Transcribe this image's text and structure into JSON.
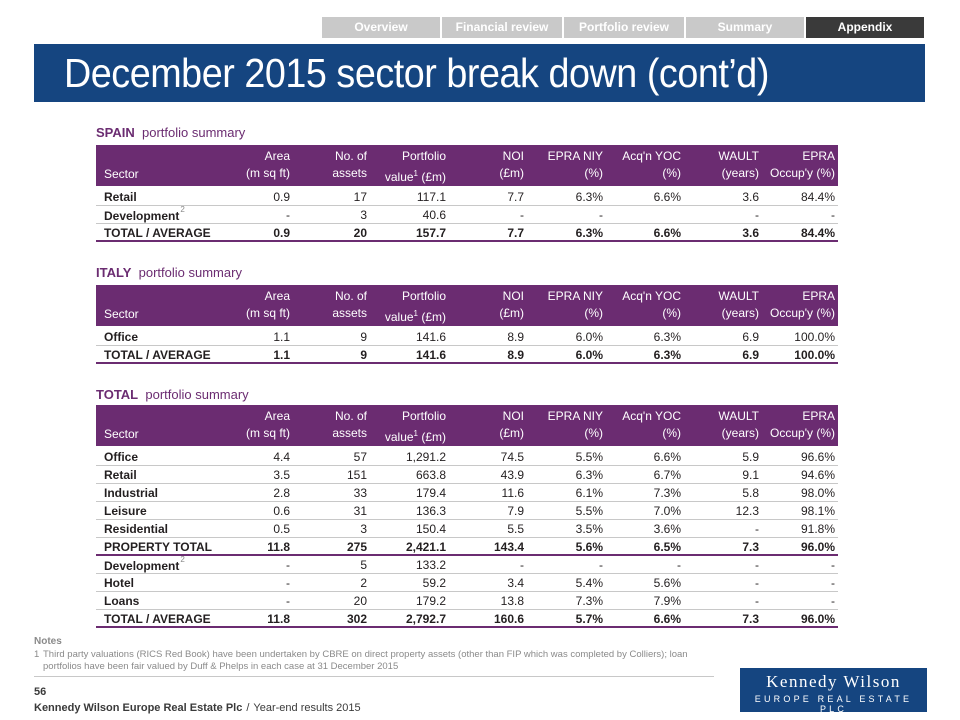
{
  "nav": {
    "tabs": [
      {
        "label": "Overview",
        "active": false
      },
      {
        "label": "Financial review",
        "active": false
      },
      {
        "label": "Portfolio review",
        "active": false
      },
      {
        "label": "Summary",
        "active": false
      },
      {
        "label": "Appendix",
        "active": true
      }
    ]
  },
  "title": "December 2015 sector break down (cont’d)",
  "headers": {
    "sector": "Sector",
    "area_1": "Area",
    "area_2": "(m sq ft)",
    "assets_1": "No. of",
    "assets_2": "assets",
    "value_1": "Portfolio",
    "value_2a": "value",
    "value_sup": "1",
    "value_2b": " (£m)",
    "noi_1": "NOI",
    "noi_2": "(£m)",
    "niy_1": "EPRA NIY",
    "niy_2": "(%)",
    "yoc_1": "Acq'n YOC",
    "yoc_2": "(%)",
    "wault_1": "WAULT",
    "wault_2": "(years)",
    "occ_1": "EPRA",
    "occ_2": "Occup'y (%)"
  },
  "spain": {
    "title_bold": "SPAIN",
    "title_rest": "portfolio summary",
    "rows": [
      {
        "sector": "Retail",
        "fn": "",
        "area": "0.9",
        "assets": "17",
        "value": "117.1",
        "noi": "7.7",
        "niy": "6.3%",
        "yoc": "6.6%",
        "wault": "3.6",
        "occ": "84.4%"
      },
      {
        "sector": "Development",
        "fn": "2",
        "area": "-",
        "assets": "3",
        "value": "40.6",
        "noi": "-",
        "niy": "-",
        "yoc": "",
        "wault": "-",
        "occ": "-"
      },
      {
        "sector": "TOTAL / AVERAGE",
        "fn": "",
        "area": "0.9",
        "assets": "20",
        "value": "157.7",
        "noi": "7.7",
        "niy": "6.3%",
        "yoc": "6.6%",
        "wault": "3.6",
        "occ": "84.4%"
      }
    ]
  },
  "italy": {
    "title_bold": "ITALY",
    "title_rest": "portfolio summary",
    "rows": [
      {
        "sector": "Office",
        "fn": "",
        "area": "1.1",
        "assets": "9",
        "value": "141.6",
        "noi": "8.9",
        "niy": "6.0%",
        "yoc": "6.3%",
        "wault": "6.9",
        "occ": "100.0%"
      },
      {
        "sector": "TOTAL / AVERAGE",
        "fn": "",
        "area": "1.1",
        "assets": "9",
        "value": "141.6",
        "noi": "8.9",
        "niy": "6.0%",
        "yoc": "6.3%",
        "wault": "6.9",
        "occ": "100.0%"
      }
    ]
  },
  "total": {
    "title_bold": "TOTAL",
    "title_rest": "portfolio summary",
    "rows": [
      {
        "sector": "Office",
        "fn": "",
        "area": "4.4",
        "assets": "57",
        "value": "1,291.2",
        "noi": "74.5",
        "niy": "5.5%",
        "yoc": "6.6%",
        "wault": "5.9",
        "occ": "96.6%"
      },
      {
        "sector": "Retail",
        "fn": "",
        "area": "3.5",
        "assets": "151",
        "value": "663.8",
        "noi": "43.9",
        "niy": "6.3%",
        "yoc": "6.7%",
        "wault": "9.1",
        "occ": "94.6%"
      },
      {
        "sector": "Industrial",
        "fn": "",
        "area": "2.8",
        "assets": "33",
        "value": "179.4",
        "noi": "11.6",
        "niy": "6.1%",
        "yoc": "7.3%",
        "wault": "5.8",
        "occ": "98.0%"
      },
      {
        "sector": "Leisure",
        "fn": "",
        "area": "0.6",
        "assets": "31",
        "value": "136.3",
        "noi": "7.9",
        "niy": "5.5%",
        "yoc": "7.0%",
        "wault": "12.3",
        "occ": "98.1%"
      },
      {
        "sector": "Residential",
        "fn": "",
        "area": "0.5",
        "assets": "3",
        "value": "150.4",
        "noi": "5.5",
        "niy": "3.5%",
        "yoc": "3.6%",
        "wault": "-",
        "occ": "91.8%"
      },
      {
        "sector": "PROPERTY TOTAL",
        "fn": "",
        "area": "11.8",
        "assets": "275",
        "value": "2,421.1",
        "noi": "143.4",
        "niy": "5.6%",
        "yoc": "6.5%",
        "wault": "7.3",
        "occ": "96.0%"
      },
      {
        "sector": "Development",
        "fn": "2",
        "area": "-",
        "assets": "5",
        "value": "133.2",
        "noi": "-",
        "niy": "-",
        "yoc": "-",
        "wault": "-",
        "occ": "-"
      },
      {
        "sector": "Hotel",
        "fn": "",
        "area": "-",
        "assets": "2",
        "value": "59.2",
        "noi": "3.4",
        "niy": "5.4%",
        "yoc": "5.6%",
        "wault": "-",
        "occ": "-"
      },
      {
        "sector": "Loans",
        "fn": "",
        "area": "-",
        "assets": "20",
        "value": "179.2",
        "noi": "13.8",
        "niy": "7.3%",
        "yoc": "7.9%",
        "wault": "-",
        "occ": "-"
      },
      {
        "sector": "TOTAL / AVERAGE",
        "fn": "",
        "area": "11.8",
        "assets": "302",
        "value": "2,792.7",
        "noi": "160.6",
        "niy": "5.7%",
        "yoc": "6.6%",
        "wault": "7.3",
        "occ": "96.0%"
      }
    ]
  },
  "notes": {
    "label": "Notes",
    "items": [
      {
        "num": "1",
        "text": "Third party valuations (RICS Red Book) have been undertaken by CBRE on direct property assets (other than FIP which was completed by Colliers); loan portfolios have been fair valued by Duff & Phelps in each case at 31 December 2015"
      }
    ]
  },
  "footer": {
    "page": "56",
    "company": "Kennedy Wilson Europe Real Estate Plc",
    "separator": "/",
    "doc": "Year-end results 2015"
  },
  "logo": {
    "line1": "Kennedy Wilson",
    "line2": "EUROPE REAL ESTATE PLC"
  },
  "colors": {
    "brand_blue": "#154580",
    "header_purple": "#6b2c71",
    "tab_grey": "#c9c9c9",
    "tab_active": "#3a3a3a"
  }
}
